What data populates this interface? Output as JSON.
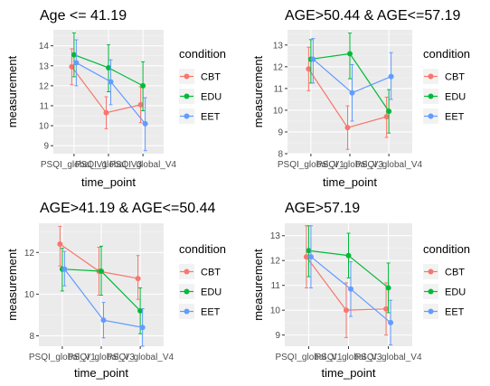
{
  "chart_data": [
    {
      "type": "line",
      "title": "Age <= 41.19",
      "xlabel": "time_point",
      "ylabel": "measurement",
      "categories": [
        "PSQI_global_V1",
        "PSQI_global_V3",
        "PSQI_global_V4"
      ],
      "ylim": [
        8.6,
        14.8
      ],
      "yticks": [
        9,
        10,
        11,
        12,
        13,
        14
      ],
      "legend_title": "condition",
      "legend_position": "right",
      "grid": true,
      "series": [
        {
          "name": "CBT",
          "color": "#F8766D",
          "values": [
            12.95,
            10.65,
            11.05
          ],
          "err_low": [
            12.05,
            9.85,
            10.15
          ],
          "err_high": [
            13.85,
            11.45,
            11.95
          ]
        },
        {
          "name": "EDU",
          "color": "#00BA38",
          "values": [
            13.55,
            12.9,
            12.0
          ],
          "err_low": [
            12.45,
            11.7,
            10.75
          ],
          "err_high": [
            14.65,
            14.05,
            13.2
          ]
        },
        {
          "name": "EET",
          "color": "#619CFF",
          "values": [
            13.15,
            12.2,
            10.1
          ],
          "err_low": [
            12.0,
            11.05,
            8.75
          ],
          "err_high": [
            14.3,
            13.3,
            11.4
          ]
        }
      ]
    },
    {
      "type": "line",
      "title": "AGE>50.44 & AGE<=57.19",
      "xlabel": "time_point",
      "ylabel": "measurement",
      "categories": [
        "PSQI_global_V1",
        "PSQI_global_V3",
        "PSQI_global_V4"
      ],
      "ylim": [
        8.0,
        13.7
      ],
      "yticks": [
        8,
        9,
        10,
        11,
        12,
        13
      ],
      "legend_title": "condition",
      "legend_position": "right",
      "grid": true,
      "series": [
        {
          "name": "CBT",
          "color": "#F8766D",
          "values": [
            11.9,
            9.2,
            9.7
          ],
          "err_low": [
            10.9,
            8.2,
            8.75
          ],
          "err_high": [
            12.9,
            10.2,
            10.6
          ]
        },
        {
          "name": "EDU",
          "color": "#00BA38",
          "values": [
            12.35,
            12.6,
            9.95
          ],
          "err_low": [
            11.25,
            11.45,
            8.95
          ],
          "err_high": [
            13.25,
            13.55,
            10.95
          ]
        },
        {
          "name": "EET",
          "color": "#619CFF",
          "values": [
            12.35,
            10.8,
            11.55
          ],
          "err_low": [
            11.25,
            9.5,
            10.5
          ],
          "err_high": [
            13.3,
            12.1,
            12.65
          ]
        }
      ]
    },
    {
      "type": "line",
      "title": "AGE>41.19 & AGE<=50.44",
      "xlabel": "time_point",
      "ylabel": "measurement",
      "categories": [
        "PSQI_global_V1",
        "PSQI_global_V3",
        "PSQI_global_V4"
      ],
      "ylim": [
        7.5,
        13.4
      ],
      "yticks": [
        8,
        10,
        12
      ],
      "legend_title": "condition",
      "legend_position": "right",
      "grid": true,
      "series": [
        {
          "name": "CBT",
          "color": "#F8766D",
          "values": [
            12.4,
            11.1,
            10.75
          ],
          "err_low": [
            11.35,
            9.95,
            9.75
          ],
          "err_high": [
            13.25,
            12.25,
            11.85
          ]
        },
        {
          "name": "EDU",
          "color": "#00BA38",
          "values": [
            11.2,
            11.1,
            9.2
          ],
          "err_low": [
            10.15,
            9.95,
            8.1
          ],
          "err_high": [
            12.2,
            12.3,
            10.3
          ]
        },
        {
          "name": "EET",
          "color": "#619CFF",
          "values": [
            11.2,
            8.75,
            8.4
          ],
          "err_low": [
            10.4,
            7.9,
            7.5
          ],
          "err_high": [
            12.05,
            9.6,
            9.3
          ]
        }
      ]
    },
    {
      "type": "line",
      "title": "AGE>57.19",
      "xlabel": "time_point",
      "ylabel": "measurement",
      "categories": [
        "PSQI_global_V1",
        "PSQI_global_V3",
        "PSQI_global_V4"
      ],
      "ylim": [
        8.55,
        13.5
      ],
      "yticks": [
        9,
        10,
        11,
        12,
        13
      ],
      "legend_title": "condition",
      "legend_position": "right",
      "grid": true,
      "series": [
        {
          "name": "CBT",
          "color": "#F8766D",
          "values": [
            12.15,
            10.0,
            10.05
          ],
          "err_low": [
            10.9,
            8.9,
            9.0
          ],
          "err_high": [
            13.4,
            11.1,
            11.1
          ]
        },
        {
          "name": "EDU",
          "color": "#00BA38",
          "values": [
            12.4,
            12.2,
            10.9
          ],
          "err_low": [
            11.35,
            11.3,
            9.9
          ],
          "err_high": [
            13.4,
            13.1,
            11.9
          ]
        },
        {
          "name": "EET",
          "color": "#619CFF",
          "values": [
            12.15,
            10.85,
            9.5
          ],
          "err_low": [
            10.9,
            9.75,
            8.6
          ],
          "err_high": [
            13.4,
            11.95,
            10.4
          ]
        }
      ]
    }
  ]
}
